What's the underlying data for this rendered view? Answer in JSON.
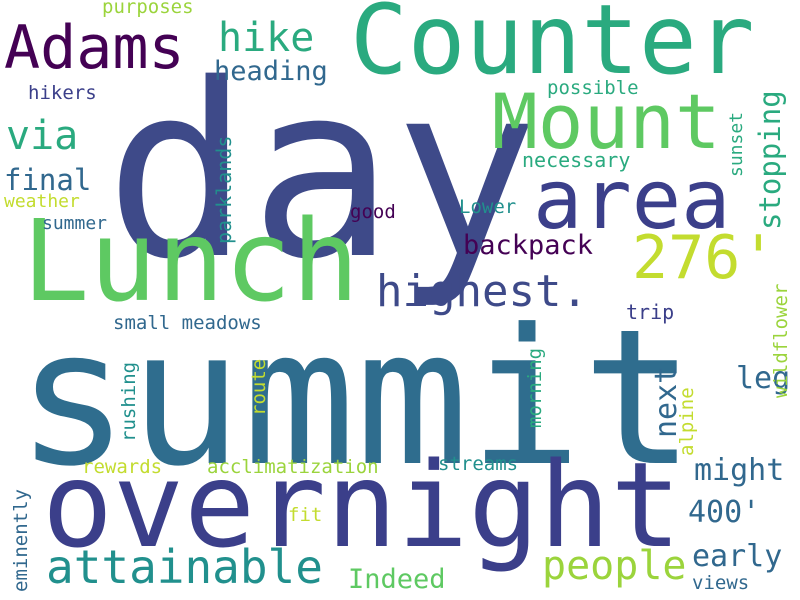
{
  "palette": {
    "dark_purple": "#440154",
    "indigo": "#3b3f8a",
    "navy_blue": "#3e4a89",
    "blue_teal": "#31688e",
    "teal": "#21908d",
    "green_teal": "#2aaa7f",
    "green": "#5ec962",
    "lime": "#9bd43c",
    "yellow_green": "#c3dc2f"
  },
  "words": {
    "summit": "summit",
    "day": "day",
    "counter": "Counter",
    "overnight": "overnight",
    "lunch": "Lunch",
    "area": "area",
    "mount": "Mount",
    "adams": "Adams",
    "attainable": "attainable",
    "highest": "highest.",
    "elevation_276": "276'",
    "people": "people",
    "hike": "hike",
    "via": "via",
    "heading": "heading",
    "stopping": "stopping",
    "backpack": "backpack",
    "final": "final",
    "next": "next",
    "might": "might",
    "early": "early",
    "elevation_400": "400'",
    "leg": "leg",
    "indeed": "Indeed",
    "small_meadows": "small meadows",
    "necessary": "necessary",
    "possible": "possible",
    "purposes": "purposes",
    "hikers": "hikers",
    "weather": "weather",
    "summer": "summer",
    "good": "good",
    "lower": "Lower",
    "trip": "trip",
    "parklands": "parklands",
    "sunset": "sunset",
    "wildflower": "wildflower",
    "rushing": "rushing",
    "route": "route",
    "morning": "morning",
    "alpine": "alpine",
    "rewards": "rewards",
    "acclimatization": "acclimatization",
    "streams": "streams",
    "fit": "fit",
    "eminently": "eminently",
    "views": "views"
  }
}
